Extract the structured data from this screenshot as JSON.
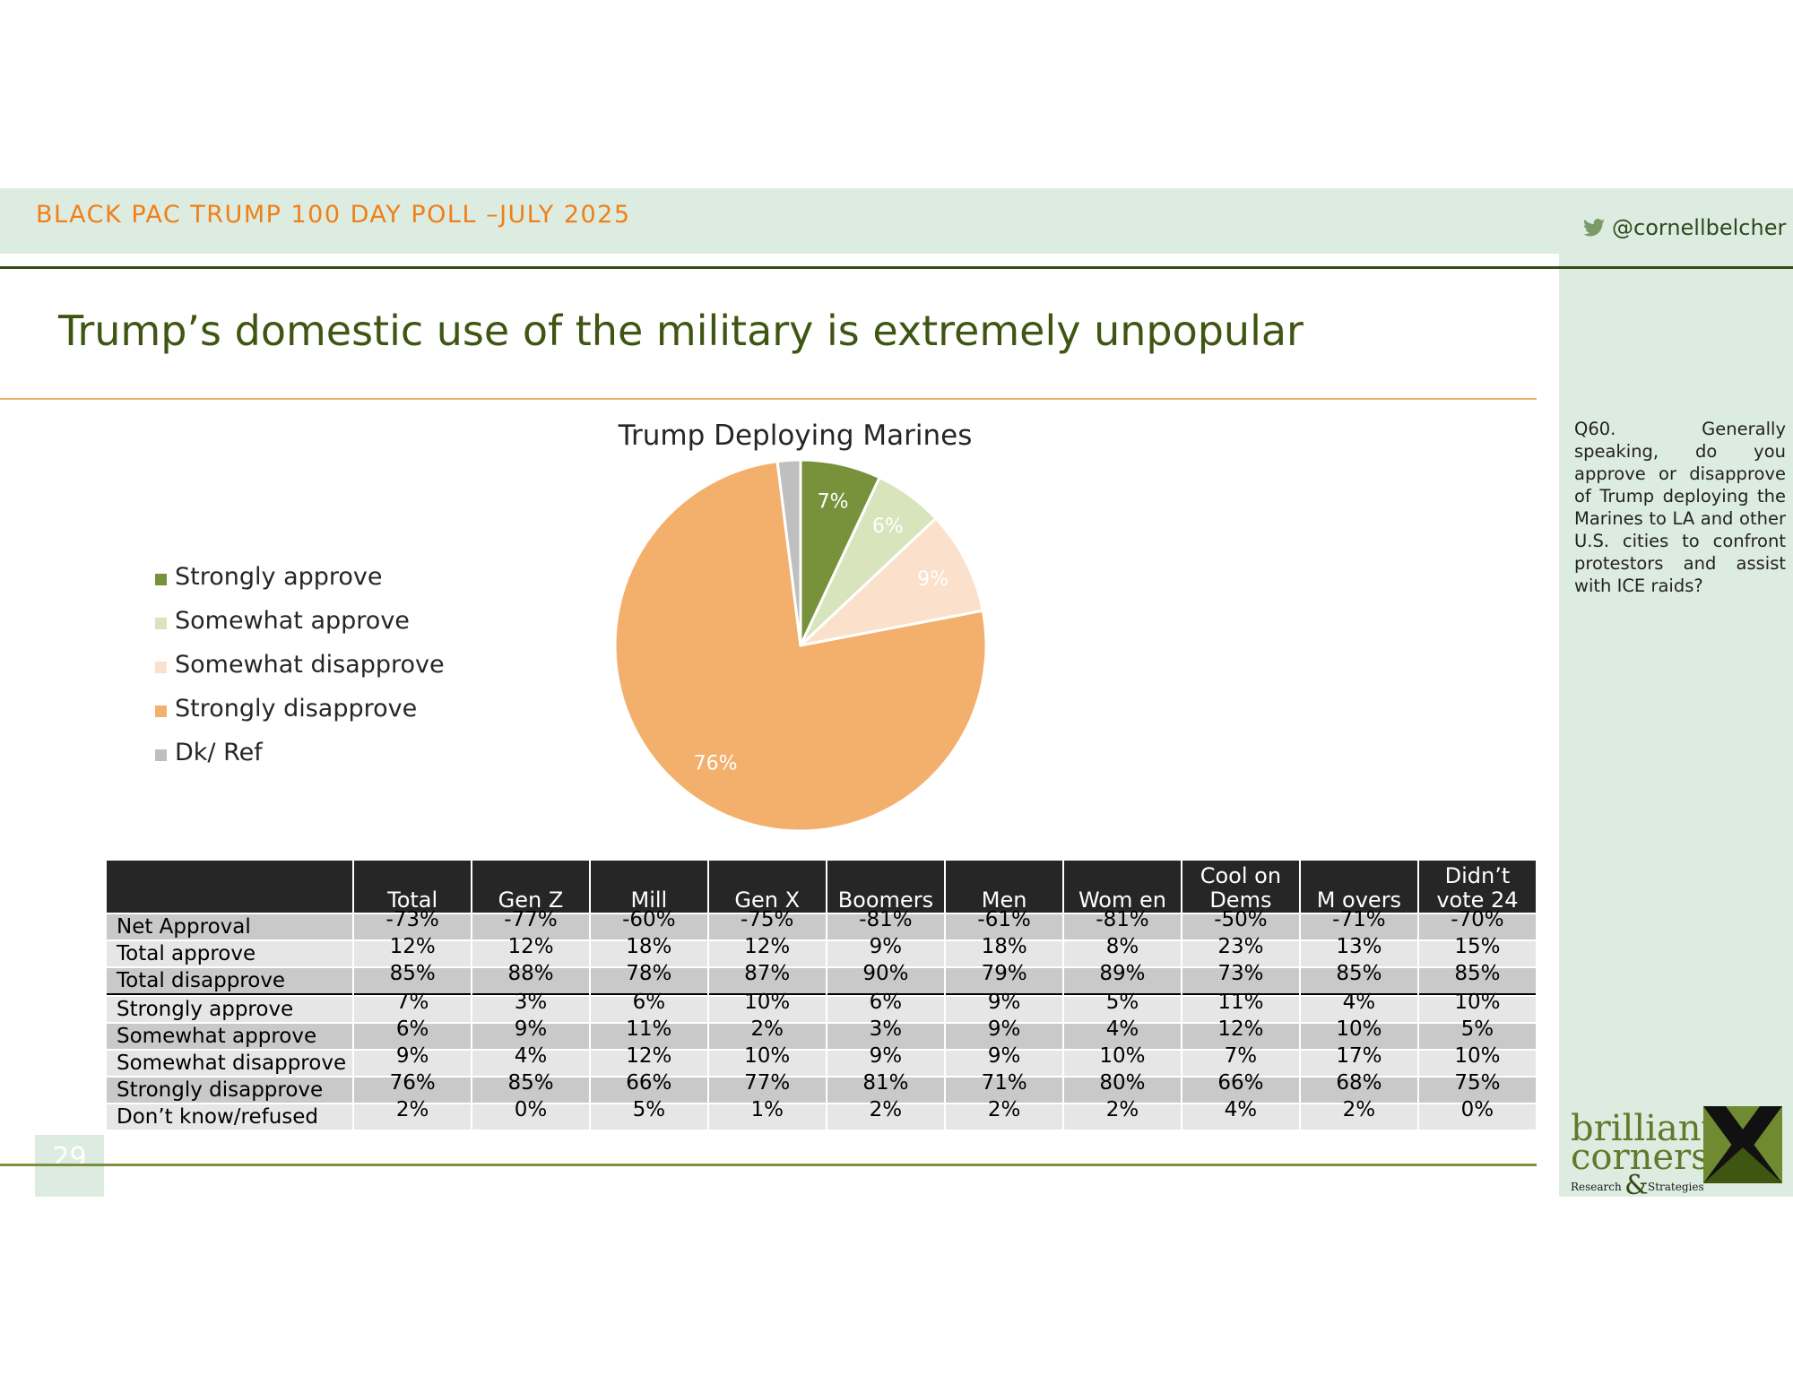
{
  "header": {
    "poll_title": "BLACK PAC TRUMP 100 DAY POLL –JULY 2025",
    "twitter_handle": "@cornellbelcher"
  },
  "page_title": "Trump’s domestic use of the military is extremely unpopular",
  "question_text": "Q60. Generally speaking, do you approve or disapprove of Trump deploying the Marines to LA and other U.S. cities to confront protestors and assist with ICE raids?",
  "page_number": "29",
  "colors": {
    "strongly_approve": "#77923b",
    "somewhat_approve": "#d8e4bc",
    "somewhat_disapprove": "#fbe1cb",
    "strongly_disapprove": "#f3b06d",
    "dk_ref": "#bfbfbf",
    "header_orange": "#f07f17",
    "title_green": "#3f5512"
  },
  "chart_data": {
    "type": "pie",
    "title": "Trump Deploying Marines",
    "legend_position": "left",
    "slices": [
      {
        "label": "Strongly approve",
        "value": 7,
        "data_label": "7%",
        "color": "#77923b",
        "label_color": "#ffffff"
      },
      {
        "label": "Somewhat approve",
        "value": 6,
        "data_label": "6%",
        "color": "#d8e4bc",
        "label_color": "#ffffff"
      },
      {
        "label": "Somewhat disapprove",
        "value": 9,
        "data_label": "9%",
        "color": "#fbe1cb",
        "label_color": "#ffffff"
      },
      {
        "label": "Strongly disapprove",
        "value": 76,
        "data_label": "76%",
        "color": "#f3b06d",
        "label_color": "#ffffff"
      },
      {
        "label": "Dk/ Ref",
        "value": 2,
        "data_label": "",
        "color": "#bfbfbf",
        "label_color": "#ffffff"
      }
    ]
  },
  "table": {
    "headers": [
      "",
      "Total",
      "Gen Z",
      "Mill",
      "Gen X",
      "Boomers",
      "Men",
      "Wom en",
      "Cool on Dems",
      "M overs",
      "Didn’t vote 24"
    ],
    "rows": [
      {
        "label": "Net Approval",
        "values": [
          "-73%",
          "-77%",
          "-60%",
          "-75%",
          "-81%",
          "-61%",
          "-81%",
          "-50%",
          "-71%",
          "-70%"
        ]
      },
      {
        "label": "Total approve",
        "values": [
          "12%",
          "12%",
          "18%",
          "12%",
          "9%",
          "18%",
          "8%",
          "23%",
          "13%",
          "15%"
        ]
      },
      {
        "label": "Total disapprove",
        "values": [
          "85%",
          "88%",
          "78%",
          "87%",
          "90%",
          "79%",
          "89%",
          "73%",
          "85%",
          "85%"
        ]
      },
      {
        "label": "Strongly approve",
        "values": [
          "7%",
          "3%",
          "6%",
          "10%",
          "6%",
          "9%",
          "5%",
          "11%",
          "4%",
          "10%"
        ]
      },
      {
        "label": "Somewhat approve",
        "values": [
          "6%",
          "9%",
          "11%",
          "2%",
          "3%",
          "9%",
          "4%",
          "12%",
          "10%",
          "5%"
        ]
      },
      {
        "label": "Somewhat disapprove",
        "values": [
          "9%",
          "4%",
          "12%",
          "10%",
          "9%",
          "9%",
          "10%",
          "7%",
          "17%",
          "10%"
        ]
      },
      {
        "label": "Strongly disapprove",
        "values": [
          "76%",
          "85%",
          "66%",
          "77%",
          "81%",
          "71%",
          "80%",
          "66%",
          "68%",
          "75%"
        ]
      },
      {
        "label": "Don’t know/refused",
        "values": [
          "2%",
          "0%",
          "5%",
          "1%",
          "2%",
          "2%",
          "2%",
          "4%",
          "2%",
          "0%"
        ]
      }
    ]
  },
  "logo": {
    "line1": "brilliant",
    "line2": "corners",
    "line3_left": "Research",
    "ampersand": "&",
    "line3_right": "Strategies"
  }
}
